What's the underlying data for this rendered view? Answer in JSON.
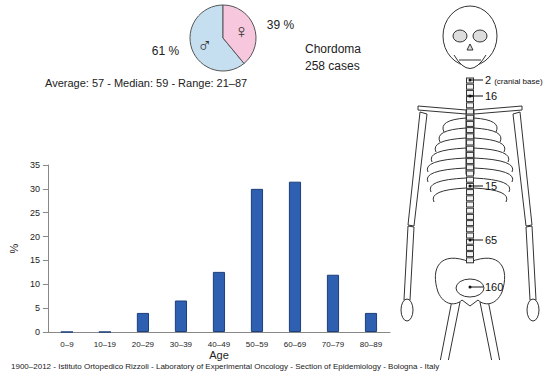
{
  "chart_data": [
    {
      "type": "pie",
      "title": "Chordoma",
      "subtitle": "258 cases",
      "categories": [
        "♂",
        "♀"
      ],
      "values": [
        61,
        39
      ],
      "value_labels": [
        "61 %",
        "39 %"
      ],
      "colors": [
        "#c5dff0",
        "#f7c8dd"
      ]
    },
    {
      "type": "bar",
      "title": "Average: 57 - Median: 59 - Range: 21–87",
      "x_label": "Age",
      "y_label": "%",
      "categories": [
        "0–9",
        "10–19",
        "20–29",
        "30–39",
        "40–49",
        "50–59",
        "60–69",
        "70–79",
        "80–89"
      ],
      "values": [
        0,
        0,
        4,
        6.6,
        12.6,
        30,
        31.5,
        12,
        4
      ],
      "color": "#2f5fb0",
      "ylim": [
        0,
        35
      ],
      "yticks": [
        0,
        5,
        10,
        15,
        20,
        25,
        30,
        35
      ],
      "grid": false
    },
    {
      "type": "skeleton",
      "categories": [
        "(cranial base)",
        null,
        null,
        null,
        null
      ],
      "values": [
        2,
        16,
        15,
        65,
        160
      ]
    }
  ],
  "footer": "1900–2012 - Istituto Ortopedico Rizzoli - Laboratory of Experimental Oncology - Section of Epidemiology - Bologna - Italy"
}
